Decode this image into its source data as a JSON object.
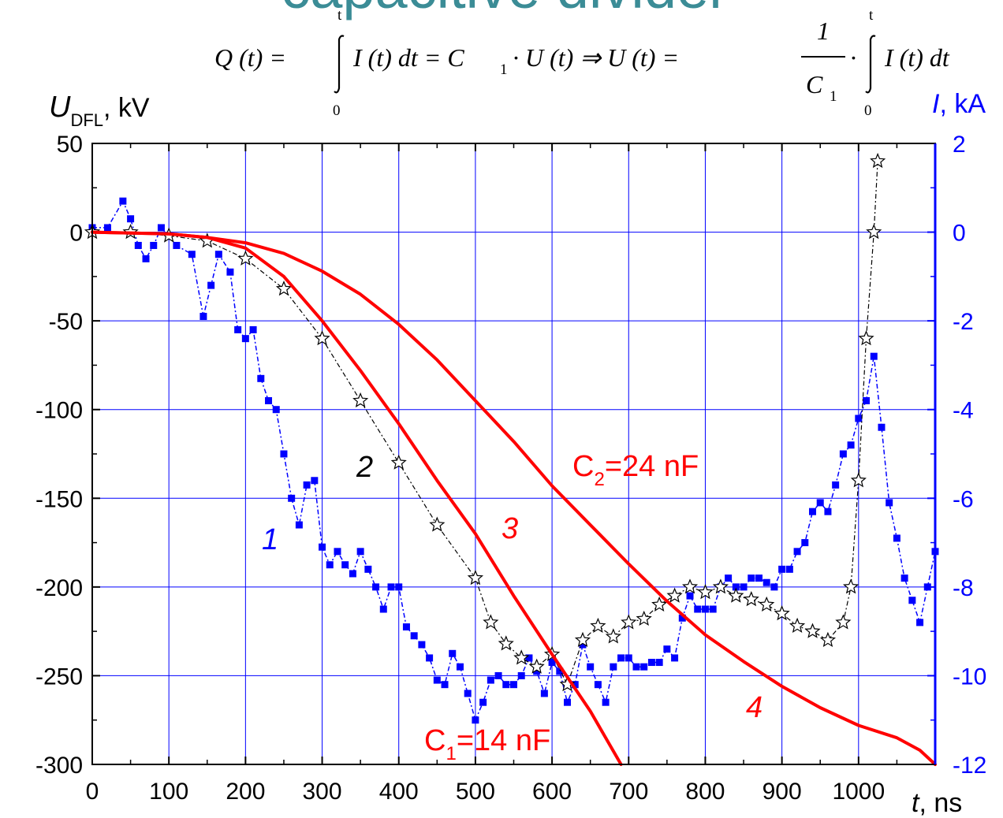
{
  "header": {
    "title_fragment": "capacitive divider"
  },
  "formula": {
    "lhs": "Q (t) =",
    "integral1_upper": "t",
    "integral1_lower": "0",
    "body1": "I (t) dt = C",
    "sub1": "1",
    "mid": "· U (t) ⇒ U (t) =",
    "frac_num": "1",
    "frac_den": "C",
    "frac_den_sub": "1",
    "dot": "·",
    "integral2_upper": "t",
    "integral2_lower": "0",
    "body2": "I (t) dt"
  },
  "chart_data": {
    "type": "line",
    "colors": {
      "current": "#0000ff",
      "voltage_measured": "#000000",
      "calc": "#ff0000",
      "grid": "#0000ff"
    },
    "xlabel": {
      "var": "t",
      "unit": ", ns"
    },
    "ylabel_left": {
      "var": "U",
      "sub": "DFL",
      "unit": ", kV"
    },
    "ylabel_right": {
      "var": "I",
      "unit": ", kA"
    },
    "xlim": [
      0,
      1100
    ],
    "ylim_left": [
      -300,
      50
    ],
    "ylim_right": [
      -12,
      2
    ],
    "x_ticks": [
      "0",
      "100",
      "200",
      "300",
      "400",
      "500",
      "600",
      "700",
      "800",
      "900",
      "1000"
    ],
    "y_ticks_left": [
      "50",
      "0",
      "-50",
      "-100",
      "-150",
      "-200",
      "-250",
      "-300"
    ],
    "y_ticks_right": [
      "2",
      "0",
      "-2",
      "-4",
      "-6",
      "-8",
      "-10",
      "-12"
    ],
    "grid": true,
    "labels": {
      "curve1": "1",
      "curve2": "2",
      "curve3": "3",
      "curve4": "4",
      "c1": {
        "main": "C",
        "sub": "1",
        "rest": "=14 nF"
      },
      "c2": {
        "main": "C",
        "sub": "2",
        "rest": "=24 nF"
      }
    },
    "series": [
      {
        "id": "1",
        "axis": "right",
        "marker": "square",
        "x": [
          0,
          20,
          40,
          50,
          60,
          70,
          80,
          90,
          110,
          130,
          145,
          155,
          165,
          180,
          190,
          200,
          210,
          220,
          230,
          240,
          250,
          260,
          270,
          280,
          290,
          300,
          310,
          320,
          330,
          340,
          350,
          360,
          370,
          380,
          390,
          400,
          410,
          420,
          430,
          440,
          450,
          460,
          470,
          480,
          490,
          500,
          510,
          520,
          530,
          540,
          550,
          560,
          570,
          580,
          590,
          600,
          610,
          620,
          630,
          640,
          650,
          660,
          670,
          680,
          690,
          700,
          710,
          720,
          730,
          740,
          750,
          760,
          770,
          780,
          790,
          800,
          810,
          820,
          830,
          840,
          850,
          860,
          870,
          880,
          890,
          900,
          910,
          920,
          930,
          940,
          950,
          960,
          970,
          980,
          990,
          1000,
          1010,
          1020,
          1030,
          1040,
          1050,
          1060,
          1070,
          1080,
          1090,
          1100
        ],
        "y": [
          0.1,
          0.1,
          0.7,
          0.3,
          -0.3,
          -0.6,
          -0.3,
          0.1,
          -0.3,
          -0.5,
          -1.9,
          -1.2,
          -0.5,
          -0.9,
          -2.2,
          -2.4,
          -2.2,
          -3.3,
          -3.8,
          -4.0,
          -5.0,
          -6.0,
          -6.6,
          -5.7,
          -5.6,
          -7.1,
          -7.5,
          -7.2,
          -7.5,
          -7.7,
          -7.2,
          -7.6,
          -8.0,
          -8.5,
          -8.0,
          -8.0,
          -8.9,
          -9.1,
          -9.3,
          -9.6,
          -10.1,
          -10.2,
          -9.5,
          -9.8,
          -10.4,
          -11.0,
          -10.6,
          -10.1,
          -10.0,
          -10.2,
          -10.2,
          -10.0,
          -9.6,
          -9.9,
          -10.4,
          -9.7,
          -9.9,
          -10.6,
          -10.2,
          -9.3,
          -9.8,
          -10.2,
          -10.6,
          -9.8,
          -9.6,
          -9.6,
          -9.8,
          -9.8,
          -9.7,
          -9.7,
          -9.4,
          -9.6,
          -8.7,
          -8.2,
          -8.5,
          -8.5,
          -8.5,
          -8.0,
          -7.8,
          -8.0,
          -8.0,
          -7.8,
          -7.8,
          -7.9,
          -8.0,
          -7.6,
          -7.6,
          -7.2,
          -7.0,
          -6.3,
          -6.1,
          -6.3,
          -5.7,
          -5.0,
          -4.8,
          -4.2,
          -3.8,
          -2.8,
          -4.4,
          -6.1,
          -6.9,
          -7.8,
          -8.3,
          -8.8,
          -8.0,
          -7.2
        ]
      },
      {
        "id": "2",
        "axis": "left",
        "marker": "star",
        "x": [
          0,
          50,
          100,
          150,
          200,
          250,
          300,
          350,
          400,
          450,
          500,
          520,
          540,
          560,
          580,
          600,
          620,
          640,
          660,
          680,
          700,
          720,
          740,
          760,
          780,
          800,
          820,
          840,
          860,
          880,
          900,
          920,
          940,
          960,
          980,
          990,
          1000,
          1010,
          1020,
          1025
        ],
        "y": [
          0,
          0,
          -2,
          -5,
          -15,
          -32,
          -60,
          -95,
          -130,
          -165,
          -195,
          -220,
          -232,
          -240,
          -245,
          -238,
          -255,
          -230,
          -222,
          -228,
          -220,
          -218,
          -210,
          -205,
          -200,
          -203,
          -200,
          -205,
          -207,
          -210,
          -215,
          -222,
          -225,
          -230,
          -220,
          -200,
          -140,
          -60,
          0,
          40
        ]
      },
      {
        "id": "3",
        "axis": "left",
        "marker": "none",
        "x": [
          0,
          100,
          150,
          200,
          250,
          300,
          350,
          400,
          450,
          500,
          550,
          600,
          650,
          690
        ],
        "y": [
          0,
          -1,
          -3,
          -9,
          -25,
          -50,
          -78,
          -108,
          -140,
          -170,
          -205,
          -238,
          -270,
          -300
        ]
      },
      {
        "id": "4",
        "axis": "left",
        "marker": "none",
        "x": [
          0,
          100,
          150,
          200,
          250,
          300,
          350,
          400,
          450,
          500,
          550,
          600,
          650,
          700,
          750,
          800,
          850,
          900,
          950,
          1000,
          1050,
          1080,
          1100
        ],
        "y": [
          0,
          -1,
          -3,
          -6,
          -12,
          -22,
          -35,
          -52,
          -72,
          -95,
          -118,
          -143,
          -165,
          -187,
          -208,
          -227,
          -242,
          -256,
          -268,
          -278,
          -285,
          -292,
          -300
        ]
      }
    ]
  }
}
